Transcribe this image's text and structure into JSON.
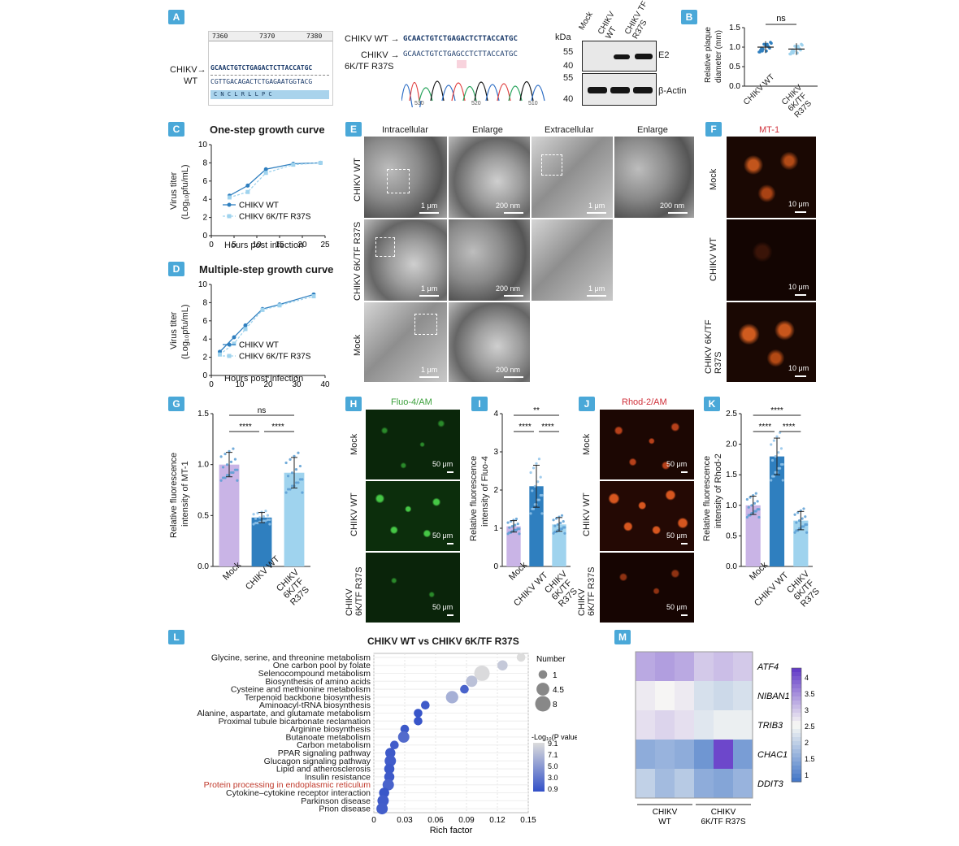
{
  "panels": {
    "A": {
      "badge": "A",
      "ruler_ticks": [
        "7360",
        "7370",
        "7380"
      ],
      "wt_arrow_label_1": "CHIKV→",
      "wt_arrow_label_2": "WT",
      "seq_top": "GCAACTGTCTGAGACTCTTACCATGC",
      "seq_bottom": "CGTTGACAGACTCTGAGAATGGTACG",
      "aa_row": "C   N   C   L   R   L   L   P   C",
      "chrom_wt_label": "CHIKV WT →",
      "chrom_wt_seq": "GCAACTGTCTGAGACTCTTACCATGC",
      "chrom_mut_label_1": "CHIKV →",
      "chrom_mut_label_2": "6K/TF R37S",
      "chrom_mut_seq": "GCAACTGTCTGAGCCTCTTACCATGC",
      "chrom_axis": [
        "530",
        "520",
        "510"
      ],
      "blot_kda": "kDa",
      "blot_lanes": [
        "Mock",
        "CHIKV WT",
        "CHIKV TF R37S"
      ],
      "blot_markers_top": [
        "55",
        "40"
      ],
      "blot_markers_bottom": [
        "55",
        "40"
      ],
      "blot_protein_top": "E2",
      "blot_protein_bottom": "β-Actin"
    },
    "B": {
      "badge": "B",
      "ylabel_1": "Relative plaque",
      "ylabel_2": "diameter (mm)",
      "yticks": [
        "1.5",
        "1.0",
        "0.5",
        "0.0"
      ],
      "sig": "ns",
      "groups": [
        "CHIKV WT",
        "CHIKV 6K/TF R37S"
      ]
    },
    "C": {
      "badge": "C",
      "title": "One-step growth curve",
      "ylabel_1": "Virus titer",
      "ylabel_2": "(Log₁₀pfu/mL)",
      "xlabel": "Hours post infection",
      "legend": [
        "CHIKV WT",
        "CHIKV 6K/TF R37S"
      ]
    },
    "D": {
      "badge": "D",
      "title": "Multiple-step growth curve",
      "ylabel_1": "Virus titer",
      "ylabel_2": "(Log₁₀pfu/mL)",
      "xlabel": "Hours post infection",
      "legend": [
        "CHIKV WT",
        "CHIKV 6K/TF R37S"
      ]
    },
    "E": {
      "badge": "E",
      "cols": [
        "Intracellular",
        "Enlarge",
        "Extracellular",
        "Enlarge"
      ],
      "rows": [
        "CHIKV WT",
        "CHIKV 6K/TF R37S",
        "Mock"
      ],
      "scales": [
        "1 μm",
        "200 nm",
        "1 μm",
        "200 nm",
        "1 μm",
        "200 nm",
        "1 μm",
        "1 μm",
        "200 nm"
      ]
    },
    "F": {
      "badge": "F",
      "title": "MT-1",
      "rows": [
        "Mock",
        "CHIKV WT",
        "CHIKV 6K/TF R37S"
      ],
      "scale": "10 μm"
    },
    "G": {
      "badge": "G",
      "ylabel_1": "Relative fluorescence",
      "ylabel_2": "intensity of MT-1",
      "sig_top": "ns",
      "sig_left": "****",
      "sig_right": "****",
      "groups": [
        "Mock",
        "CHIKV WT",
        "CHIKV 6K/TF R37S"
      ]
    },
    "H": {
      "badge": "H",
      "title": "Fluo-4/AM",
      "rows": [
        "Mock",
        "CHIKV WT",
        "CHIKV 6K/TF R37S"
      ],
      "scale": "50 μm"
    },
    "I": {
      "badge": "I",
      "ylabel_1": "Relative fluorescence",
      "ylabel_2": "intensity of Fluo-4",
      "sig_top": "**",
      "sig_left": "****",
      "sig_right": "****",
      "groups": [
        "Mock",
        "CHIKV WT",
        "CHIKV 6K/TF R37S"
      ]
    },
    "J": {
      "badge": "J",
      "title": "Rhod-2/AM",
      "rows": [
        "Mock",
        "CHIKV WT",
        "CHIKV 6K/TF R37S"
      ],
      "scale": "50 μm"
    },
    "K": {
      "badge": "K",
      "ylabel_1": "Relative fluorescence",
      "ylabel_2": "intensity of Rhod-2",
      "sig_top": "****",
      "sig_left": "****",
      "sig_right": "****",
      "groups": [
        "Mock",
        "CHIKV WT",
        "CHIKV 6K/TF R37S"
      ]
    },
    "L": {
      "badge": "L",
      "title": "CHIKV WT vs CHIKV 6K/TF R37S",
      "size_legend_title": "Number",
      "size_legend": [
        "1",
        "4.5",
        "8"
      ],
      "color_legend_title": "-Log₁₀(P value)",
      "color_legend": [
        "9.1",
        "7.1",
        "5.0",
        "3.0",
        "0.9"
      ]
    },
    "M": {
      "badge": "M",
      "genes": [
        "ATF4",
        "NIBAN1",
        "TRIB3",
        "CHAC1",
        "DDIT3"
      ],
      "groups": [
        "CHIKV WT",
        "CHIKV 6K/TF R37S"
      ],
      "colorbar_ticks": [
        "4",
        "3.5",
        "3",
        "2.5",
        "2",
        "1.5",
        "1"
      ]
    }
  },
  "colors": {
    "badge": "#4aa8d8",
    "wt": "#2f7fbf",
    "mut": "#9fd3ee",
    "mock": "#c9b4e6",
    "pathway_highlight": "#c0392b"
  },
  "chart_data": [
    {
      "id": "B",
      "type": "scatter",
      "categories": [
        "CHIKV WT",
        "CHIKV 6K/TF R37S"
      ],
      "series": [
        {
          "values": [
            1.0,
            0.95
          ]
        }
      ],
      "ylabel": "Relative plaque diameter (mm)",
      "ylim": [
        0,
        1.5
      ],
      "yticks": [
        0.0,
        0.5,
        1.0,
        1.5
      ]
    },
    {
      "id": "C",
      "type": "line",
      "title": "One-step growth curve",
      "xlabel": "Hours post infection",
      "ylabel": "Virus titer (Log10pfu/mL)",
      "x": [
        4,
        8,
        12,
        18,
        24
      ],
      "series": [
        {
          "name": "CHIKV WT",
          "values": [
            4.4,
            5.5,
            7.3,
            7.9,
            8.0
          ]
        },
        {
          "name": "CHIKV 6K/TF R37S",
          "values": [
            4.2,
            4.8,
            6.9,
            7.8,
            8.0
          ]
        }
      ],
      "xlim": [
        0,
        25
      ],
      "ylim": [
        0,
        10
      ],
      "xticks": [
        0,
        5,
        10,
        15,
        20,
        25
      ],
      "yticks": [
        0,
        2,
        4,
        6,
        8,
        10
      ]
    },
    {
      "id": "D",
      "type": "line",
      "title": "Multiple-step growth curve",
      "xlabel": "Hours post infection",
      "ylabel": "Virus titer (Log10pfu/mL)",
      "x": [
        3,
        8,
        12,
        18,
        24,
        36
      ],
      "series": [
        {
          "name": "CHIKV WT",
          "values": [
            2.6,
            4.2,
            5.5,
            7.3,
            7.8,
            8.9
          ]
        },
        {
          "name": "CHIKV 6K/TF R37S",
          "values": [
            2.3,
            3.5,
            5.1,
            7.2,
            7.7,
            8.7
          ]
        }
      ],
      "xlim": [
        0,
        40
      ],
      "ylim": [
        0,
        10
      ],
      "xticks": [
        0,
        10,
        20,
        30,
        40
      ],
      "yticks": [
        0,
        2,
        4,
        6,
        8,
        10
      ]
    },
    {
      "id": "G",
      "type": "bar",
      "categories": [
        "Mock",
        "CHIKV WT",
        "CHIKV 6K/TF R37S"
      ],
      "values": [
        1.0,
        0.48,
        0.92
      ],
      "errors": [
        0.12,
        0.05,
        0.15
      ],
      "ylabel": "Relative fluorescence intensity of MT-1",
      "ylim": [
        0,
        1.5
      ],
      "yticks": [
        0.0,
        0.5,
        1.0,
        1.5
      ]
    },
    {
      "id": "I",
      "type": "bar",
      "categories": [
        "Mock",
        "CHIKV WT",
        "CHIKV 6K/TF R37S"
      ],
      "values": [
        1.05,
        2.1,
        1.1
      ],
      "errors": [
        0.15,
        0.55,
        0.18
      ],
      "ylabel": "Relative fluorescence intensity of Fluo-4",
      "ylim": [
        0,
        4
      ],
      "yticks": [
        0,
        1,
        2,
        3,
        4
      ]
    },
    {
      "id": "K",
      "type": "bar",
      "categories": [
        "Mock",
        "CHIKV WT",
        "CHIKV 6K/TF R37S"
      ],
      "values": [
        1.0,
        1.8,
        0.75
      ],
      "errors": [
        0.15,
        0.3,
        0.15
      ],
      "ylabel": "Relative fluorescence intensity of Rhod-2",
      "ylim": [
        0,
        2.5
      ],
      "yticks": [
        0.0,
        0.5,
        1.0,
        1.5,
        2.0,
        2.5
      ]
    },
    {
      "id": "L",
      "type": "scatter",
      "title": "CHIKV WT vs CHIKV 6K/TF R37S",
      "xlabel": "Rich factor",
      "xlim": [
        0,
        0.15
      ],
      "xticks": [
        0,
        0.03,
        0.06,
        0.09,
        0.12,
        0.15
      ],
      "pathways": [
        {
          "name": "Glycine, serine, and threonine metabolism",
          "rich": 0.143,
          "number": 1,
          "p": 9.1
        },
        {
          "name": "One carbon pool by folate",
          "rich": 0.125,
          "number": 2,
          "p": 8.0
        },
        {
          "name": "Selenocompound metabolism",
          "rich": 0.105,
          "number": 8,
          "p": 9.0
        },
        {
          "name": "Biosynthesis of amino acids",
          "rich": 0.095,
          "number": 3,
          "p": 7.5
        },
        {
          "name": "Cysteine and methionine metabolism",
          "rich": 0.088,
          "number": 1,
          "p": 2.0
        },
        {
          "name": "Terpenoid backbone biosynthesis",
          "rich": 0.076,
          "number": 4,
          "p": 6.5
        },
        {
          "name": "Aminoacyl-tRNA biosynthesis",
          "rich": 0.05,
          "number": 1,
          "p": 1.5
        },
        {
          "name": "Alanine, aspartate, and glutamate metabolism",
          "rich": 0.043,
          "number": 1,
          "p": 1.2
        },
        {
          "name": "Proximal tubule bicarbonate reclamation",
          "rich": 0.043,
          "number": 1,
          "p": 1.2
        },
        {
          "name": "Arginine biosynthesis",
          "rich": 0.03,
          "number": 1,
          "p": 1.4
        },
        {
          "name": "Butanoate metabolism",
          "rich": 0.029,
          "number": 3,
          "p": 2.5
        },
        {
          "name": "Carbon metabolism",
          "rich": 0.02,
          "number": 1,
          "p": 1.6
        },
        {
          "name": "PPAR signaling pathway",
          "rich": 0.016,
          "number": 2,
          "p": 1.5
        },
        {
          "name": "Glucagon signaling pathway",
          "rich": 0.016,
          "number": 3,
          "p": 1.6
        },
        {
          "name": "Lipid and atherosclerosis",
          "rich": 0.015,
          "number": 2,
          "p": 1.4
        },
        {
          "name": "Insulin resistance",
          "rich": 0.015,
          "number": 2,
          "p": 1.5
        },
        {
          "name": "Protein processing in endoplasmic reticulum",
          "rich": 0.014,
          "number": 3,
          "p": 2.0
        },
        {
          "name": "Cytokine–cytokine receptor interaction",
          "rich": 0.01,
          "number": 2,
          "p": 1.3
        },
        {
          "name": "Parkinson disease",
          "rich": 0.009,
          "number": 3,
          "p": 1.6
        },
        {
          "name": "Prion disease",
          "rich": 0.008,
          "number": 3,
          "p": 1.7
        }
      ]
    },
    {
      "id": "M",
      "type": "heatmap",
      "rows": [
        "ATF4",
        "NIBAN1",
        "TRIB3",
        "CHAC1",
        "DDIT3"
      ],
      "columns": [
        "CHIKV WT",
        "CHIKV WT",
        "CHIKV WT",
        "CHIKV 6K/TF R37S",
        "CHIKV 6K/TF R37S",
        "CHIKV 6K/TF R37S"
      ],
      "values": [
        [
          3.3,
          3.4,
          3.3,
          3.0,
          3.1,
          3.0
        ],
        [
          2.7,
          2.6,
          2.7,
          2.2,
          2.1,
          2.2
        ],
        [
          2.8,
          2.9,
          2.8,
          2.3,
          2.4,
          2.4
        ],
        [
          1.5,
          1.6,
          1.5,
          1.2,
          4.2,
          1.3
        ],
        [
          2.0,
          1.7,
          1.9,
          1.5,
          1.4,
          1.6
        ]
      ],
      "vmin": 0.8,
      "vmax": 4.3,
      "colorbar_ticks": [
        4,
        3.5,
        3,
        2.5,
        2,
        1.5,
        1
      ]
    }
  ]
}
